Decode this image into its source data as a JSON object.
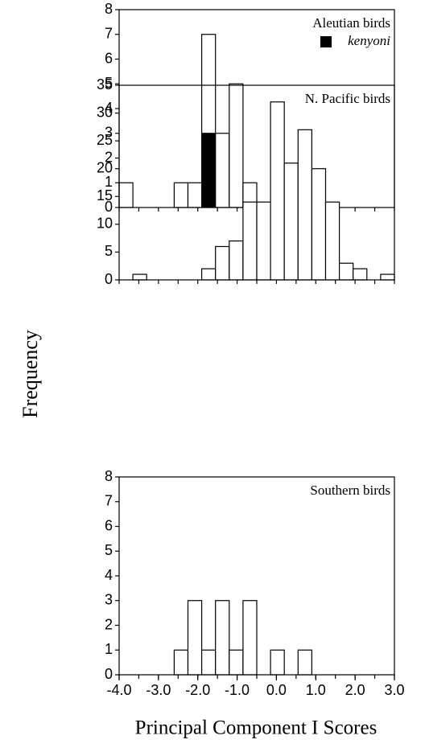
{
  "y_label": "Frequency",
  "x_label": "Principal Component I Scores",
  "chart_data": [
    {
      "type": "histogram",
      "label": "Aleutian birds",
      "bins": [
        -4.0,
        -3.65,
        -3.3,
        -2.95,
        -2.6,
        -2.25,
        -1.9,
        -1.55,
        -1.2,
        -0.85,
        -0.5,
        -0.15,
        0.2,
        0.55,
        0.9,
        1.25,
        1.6,
        1.95,
        2.3,
        2.65,
        3.0
      ],
      "series": [
        {
          "name": "kenyoni",
          "color": "#000000",
          "values": [
            0,
            0,
            0,
            0,
            0,
            0,
            3,
            0,
            0,
            0,
            0,
            0,
            0,
            0,
            0,
            0,
            0,
            0,
            0,
            0
          ]
        },
        {
          "color": "#ffffff",
          "values": [
            1,
            0,
            0,
            0,
            1,
            1,
            4,
            3,
            5,
            1,
            0,
            0,
            1,
            1,
            0,
            0,
            0,
            0,
            0,
            0
          ]
        }
      ],
      "xlim": [
        -4.0,
        3.0
      ],
      "ylim": [
        0,
        8
      ],
      "yticks": [
        0,
        1,
        2,
        3,
        4,
        5,
        6,
        7,
        8
      ]
    },
    {
      "type": "histogram",
      "label": "N. Pacific birds",
      "bins": [
        -4.0,
        -3.65,
        -3.3,
        -2.95,
        -2.6,
        -2.25,
        -1.9,
        -1.55,
        -1.2,
        -0.85,
        -0.5,
        -0.15,
        0.2,
        0.55,
        0.9,
        1.25,
        1.6,
        1.95,
        2.3,
        2.65,
        3.0
      ],
      "series": [
        {
          "color": "#ffffff",
          "values": [
            0,
            1,
            0,
            0,
            0,
            0,
            2,
            6,
            7,
            14,
            14,
            32,
            21,
            27,
            20,
            14,
            3,
            2,
            0,
            1
          ]
        }
      ],
      "xlim": [
        -4.0,
        3.0
      ],
      "ylim": [
        0,
        35
      ],
      "yticks": [
        0,
        5,
        10,
        15,
        20,
        25,
        30,
        35
      ]
    },
    {
      "type": "histogram",
      "label": "Southern birds",
      "bins": [
        -4.0,
        -3.65,
        -3.3,
        -2.95,
        -2.6,
        -2.25,
        -1.9,
        -1.55,
        -1.2,
        -0.85,
        -0.5,
        -0.15,
        0.2,
        0.55,
        0.9,
        1.25,
        1.6,
        1.95,
        2.3,
        2.65,
        3.0
      ],
      "series": [
        {
          "color": "#ffffff",
          "values": [
            0,
            0,
            0,
            0,
            1,
            3,
            1,
            3,
            1,
            3,
            0,
            1,
            0,
            1,
            0,
            0,
            0,
            0,
            0,
            0
          ]
        }
      ],
      "xlim": [
        -4.0,
        3.0
      ],
      "ylim": [
        0,
        8
      ],
      "yticks": [
        0,
        1,
        2,
        3,
        4,
        5,
        6,
        7,
        8
      ],
      "xticks": [
        {
          "value": -4,
          "label": "-4.0"
        },
        {
          "value": -3,
          "label": "-3.0"
        },
        {
          "value": -2,
          "label": "-2.0"
        },
        {
          "value": -1,
          "label": "-1.0"
        },
        {
          "value": 0,
          "label": "0.0"
        },
        {
          "value": 1,
          "label": "1.0"
        },
        {
          "value": 2,
          "label": "2.0"
        },
        {
          "value": 3,
          "label": "3.0"
        }
      ]
    }
  ]
}
